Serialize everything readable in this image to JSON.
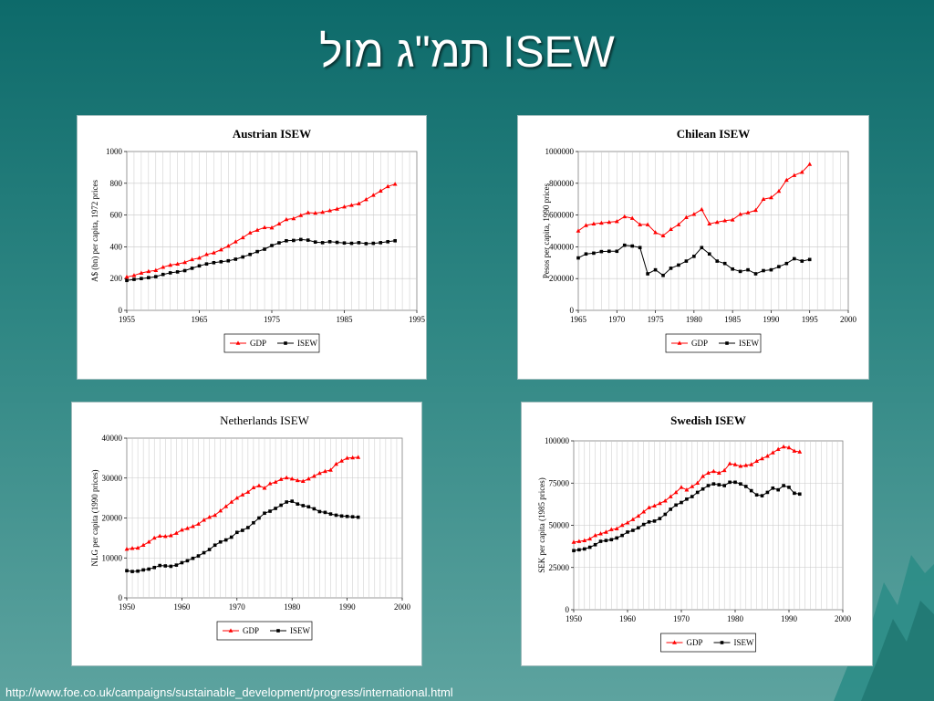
{
  "slide": {
    "title": "תמ\"ג מול ISEW",
    "footer_url": "http://www.foe.co.uk/campaigns/sustainable_development/progress/international.html"
  },
  "colors": {
    "gdp": "#ff0000",
    "isew": "#000000",
    "grid": "#c8c8c8"
  },
  "chart_data": [
    {
      "type": "line",
      "title": "Austrian ISEW",
      "ylabel": "A$ (bn) per capita, 1972 prices",
      "xlim": [
        1955,
        1995
      ],
      "ylim": [
        0,
        1000
      ],
      "xticks": [
        1955,
        1965,
        1975,
        1985,
        1995
      ],
      "yticks": [
        0,
        200,
        400,
        600,
        800,
        1000
      ],
      "ytick_labels": [
        "0",
        "200",
        "400",
        "600",
        "800",
        "1000"
      ],
      "series": [
        {
          "name": "GDP",
          "x": [
            1955,
            1956,
            1957,
            1958,
            1959,
            1960,
            1961,
            1962,
            1963,
            1964,
            1965,
            1966,
            1967,
            1968,
            1969,
            1970,
            1971,
            1972,
            1973,
            1974,
            1975,
            1976,
            1977,
            1978,
            1979,
            1980,
            1981,
            1982,
            1983,
            1984,
            1985,
            1986,
            1987,
            1988,
            1989,
            1990,
            1991,
            1992
          ],
          "values": [
            210,
            220,
            235,
            245,
            252,
            272,
            285,
            292,
            302,
            320,
            330,
            352,
            362,
            382,
            405,
            432,
            458,
            488,
            505,
            522,
            520,
            545,
            572,
            578,
            598,
            615,
            612,
            618,
            628,
            638,
            652,
            662,
            672,
            698,
            725,
            752,
            780,
            795
          ]
        },
        {
          "name": "ISEW",
          "x": [
            1955,
            1956,
            1957,
            1958,
            1959,
            1960,
            1961,
            1962,
            1963,
            1964,
            1965,
            1966,
            1967,
            1968,
            1969,
            1970,
            1971,
            1972,
            1973,
            1974,
            1975,
            1976,
            1977,
            1978,
            1979,
            1980,
            1981,
            1982,
            1983,
            1984,
            1985,
            1986,
            1987,
            1988,
            1989,
            1990,
            1991,
            1992
          ],
          "values": [
            188,
            195,
            200,
            206,
            212,
            226,
            236,
            242,
            250,
            265,
            280,
            292,
            300,
            306,
            312,
            322,
            336,
            352,
            370,
            385,
            408,
            425,
            438,
            440,
            446,
            442,
            430,
            426,
            432,
            428,
            424,
            422,
            426,
            420,
            422,
            426,
            432,
            438
          ]
        }
      ],
      "legend": {
        "position": "bottom",
        "labels": [
          "GDP",
          "ISEW"
        ]
      }
    },
    {
      "type": "line",
      "title": "Chilean ISEW",
      "ylabel": "Pesos per capita, 1990 prices",
      "xlim": [
        1965,
        2000
      ],
      "ylim": [
        0,
        1000000
      ],
      "xticks": [
        1965,
        1970,
        1975,
        1980,
        1985,
        1990,
        1995,
        2000
      ],
      "yticks": [
        0,
        200000,
        400000,
        600000,
        800000,
        1000000
      ],
      "ytick_labels": [
        "0",
        "200000",
        "400000",
        "600000",
        "800000",
        "1000000"
      ],
      "series": [
        {
          "name": "GDP",
          "x": [
            1965,
            1966,
            1967,
            1968,
            1969,
            1970,
            1971,
            1972,
            1973,
            1974,
            1975,
            1976,
            1977,
            1978,
            1979,
            1980,
            1981,
            1982,
            1983,
            1984,
            1985,
            1986,
            1987,
            1988,
            1989,
            1990,
            1991,
            1992,
            1993,
            1994,
            1995
          ],
          "values": [
            500000,
            535000,
            545000,
            550000,
            555000,
            560000,
            590000,
            580000,
            540000,
            540000,
            490000,
            470000,
            510000,
            540000,
            585000,
            605000,
            635000,
            545000,
            555000,
            565000,
            570000,
            605000,
            615000,
            630000,
            700000,
            710000,
            750000,
            820000,
            850000,
            870000,
            920000
          ]
        },
        {
          "name": "ISEW",
          "x": [
            1965,
            1966,
            1967,
            1968,
            1969,
            1970,
            1971,
            1972,
            1973,
            1974,
            1975,
            1976,
            1977,
            1978,
            1979,
            1980,
            1981,
            1982,
            1983,
            1984,
            1985,
            1986,
            1987,
            1988,
            1989,
            1990,
            1991,
            1992,
            1993,
            1994,
            1995
          ],
          "values": [
            330000,
            355000,
            360000,
            370000,
            372000,
            372000,
            410000,
            405000,
            395000,
            230000,
            255000,
            220000,
            265000,
            285000,
            310000,
            340000,
            395000,
            355000,
            310000,
            295000,
            260000,
            245000,
            255000,
            230000,
            250000,
            255000,
            275000,
            295000,
            325000,
            310000,
            320000
          ]
        }
      ],
      "legend": {
        "position": "bottom",
        "labels": [
          "GDP",
          "ISEW"
        ]
      }
    },
    {
      "type": "line",
      "title": "Netherlands ISEW",
      "ylabel": "NLG per capita (1990 prices)",
      "xlim": [
        1950,
        2000
      ],
      "ylim": [
        0,
        40000
      ],
      "xticks": [
        1950,
        1960,
        1970,
        1980,
        1990,
        2000
      ],
      "yticks": [
        0,
        10000,
        20000,
        30000,
        40000
      ],
      "ytick_labels": [
        "0",
        "10000",
        "20000",
        "30000",
        "40000"
      ],
      "series": [
        {
          "name": "GDP",
          "x": [
            1950,
            1951,
            1952,
            1953,
            1954,
            1955,
            1956,
            1957,
            1958,
            1959,
            1960,
            1961,
            1962,
            1963,
            1964,
            1965,
            1966,
            1967,
            1968,
            1969,
            1970,
            1971,
            1972,
            1973,
            1974,
            1975,
            1976,
            1977,
            1978,
            1979,
            1980,
            1981,
            1982,
            1983,
            1984,
            1985,
            1986,
            1987,
            1988,
            1989,
            1990,
            1991,
            1992
          ],
          "values": [
            12200,
            12400,
            12500,
            13200,
            14000,
            15000,
            15500,
            15400,
            15600,
            16200,
            17000,
            17400,
            17900,
            18500,
            19500,
            20200,
            20700,
            21800,
            22900,
            24000,
            25000,
            25800,
            26500,
            27600,
            28100,
            27500,
            28600,
            29000,
            29700,
            30100,
            29800,
            29400,
            29200,
            29800,
            30500,
            31200,
            31700,
            32000,
            33500,
            34300,
            35000,
            35100,
            35200
          ]
        },
        {
          "name": "ISEW",
          "x": [
            1950,
            1951,
            1952,
            1953,
            1954,
            1955,
            1956,
            1957,
            1958,
            1959,
            1960,
            1961,
            1962,
            1963,
            1964,
            1965,
            1966,
            1967,
            1968,
            1969,
            1970,
            1971,
            1972,
            1973,
            1974,
            1975,
            1976,
            1977,
            1978,
            1979,
            1980,
            1981,
            1982,
            1983,
            1984,
            1985,
            1986,
            1987,
            1988,
            1989,
            1990,
            1991,
            1992
          ],
          "values": [
            6800,
            6600,
            6700,
            7000,
            7200,
            7600,
            8100,
            8000,
            7900,
            8200,
            8800,
            9300,
            9900,
            10500,
            11300,
            12100,
            13200,
            14000,
            14500,
            15200,
            16400,
            16900,
            17600,
            18800,
            20000,
            21200,
            21700,
            22400,
            23200,
            24000,
            24200,
            23500,
            23100,
            22800,
            22300,
            21600,
            21400,
            21000,
            20700,
            20500,
            20400,
            20300,
            20200
          ]
        }
      ],
      "legend": {
        "position": "bottom",
        "labels": [
          "GDP",
          "ISEW"
        ]
      }
    },
    {
      "type": "line",
      "title": "Swedish ISEW",
      "ylabel": "SEK per capita (1985 prices)",
      "xlim": [
        1950,
        2000
      ],
      "ylim": [
        0,
        100000
      ],
      "xticks": [
        1950,
        1960,
        1970,
        1980,
        1990,
        2000
      ],
      "yticks": [
        0,
        25000,
        50000,
        75000,
        100000
      ],
      "ytick_labels": [
        "0",
        "25000",
        "50000",
        "75000",
        "100000"
      ],
      "series": [
        {
          "name": "GDP",
          "x": [
            1950,
            1951,
            1952,
            1953,
            1954,
            1955,
            1956,
            1957,
            1958,
            1959,
            1960,
            1961,
            1962,
            1963,
            1964,
            1965,
            1966,
            1967,
            1968,
            1969,
            1970,
            1971,
            1972,
            1973,
            1974,
            1975,
            1976,
            1977,
            1978,
            1979,
            1980,
            1981,
            1982,
            1983,
            1984,
            1985,
            1986,
            1987,
            1988,
            1989,
            1990,
            1991,
            1992
          ],
          "values": [
            40000,
            40500,
            41000,
            42000,
            44000,
            45000,
            46000,
            47500,
            48000,
            50000,
            51500,
            53500,
            55500,
            58000,
            60500,
            61500,
            63000,
            64500,
            67000,
            69500,
            72500,
            71000,
            73000,
            75000,
            79000,
            81000,
            82000,
            81000,
            82500,
            86500,
            86000,
            85000,
            85500,
            86000,
            88000,
            89500,
            91000,
            93000,
            95000,
            96500,
            96000,
            94000,
            93500
          ]
        },
        {
          "name": "ISEW",
          "x": [
            1950,
            1951,
            1952,
            1953,
            1954,
            1955,
            1956,
            1957,
            1958,
            1959,
            1960,
            1961,
            1962,
            1963,
            1964,
            1965,
            1966,
            1967,
            1968,
            1969,
            1970,
            1971,
            1972,
            1973,
            1974,
            1975,
            1976,
            1977,
            1978,
            1979,
            1980,
            1981,
            1982,
            1983,
            1984,
            1985,
            1986,
            1987,
            1988,
            1989,
            1990,
            1991,
            1992
          ],
          "values": [
            35000,
            35500,
            36000,
            37000,
            38500,
            40500,
            41000,
            41500,
            42500,
            44000,
            46000,
            47000,
            48500,
            50500,
            52000,
            52500,
            54000,
            56500,
            59500,
            62000,
            63500,
            65500,
            67000,
            69500,
            71500,
            73500,
            74500,
            74000,
            73500,
            75500,
            75500,
            74500,
            73000,
            70500,
            68000,
            67500,
            69500,
            72000,
            71000,
            73500,
            72500,
            69000,
            68500
          ]
        }
      ],
      "legend": {
        "position": "bottom",
        "labels": [
          "GDP",
          "ISEW"
        ]
      }
    }
  ]
}
